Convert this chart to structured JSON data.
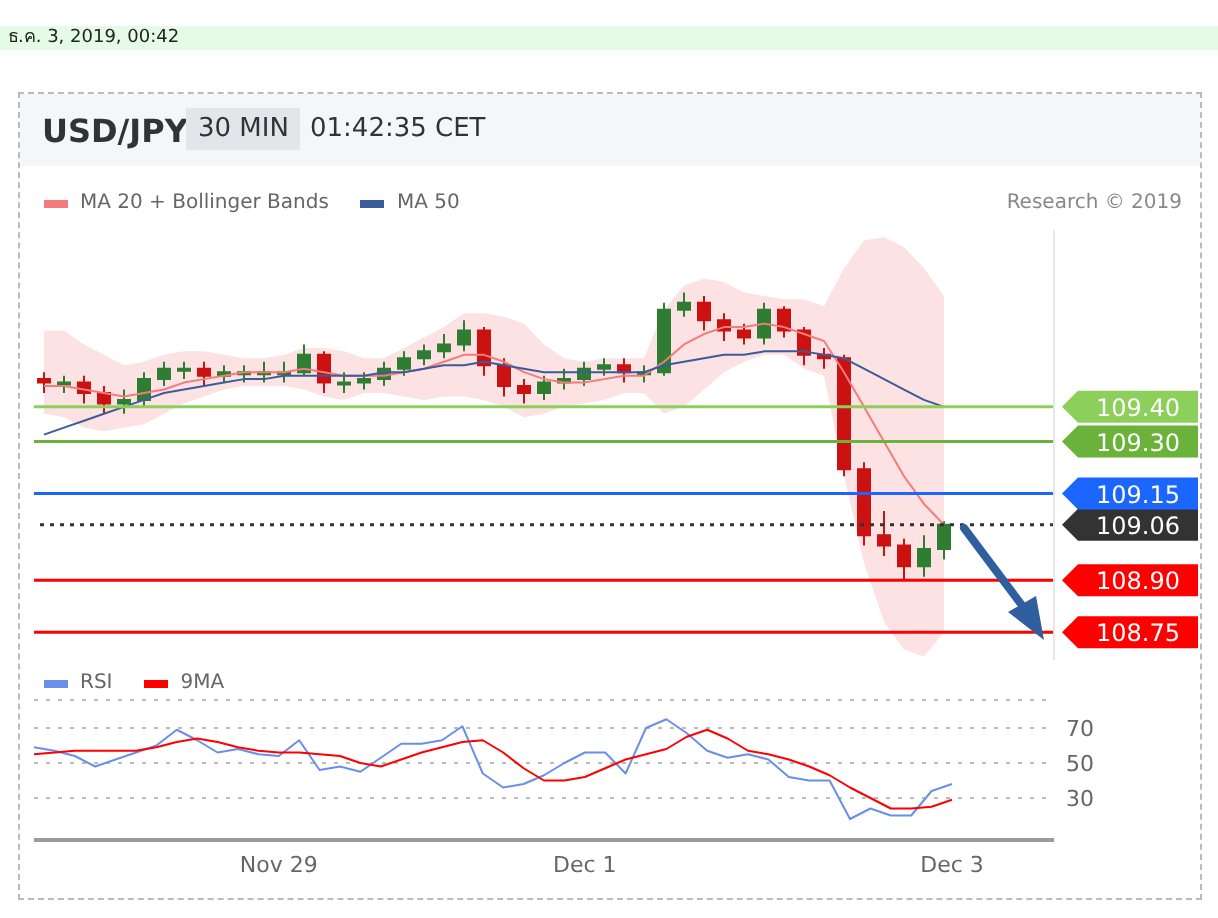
{
  "chart_data": [
    {
      "type": "candlestick",
      "title": "USD/JPY",
      "subtitle": "30 MIN",
      "annotations": [
        "01:42:35 CET",
        "Research © 2019",
        "ธ.ค. 3, 2019, 00:42"
      ],
      "categories": [
        null,
        null,
        null,
        null,
        null,
        null,
        null,
        null,
        null,
        null,
        null,
        null,
        null,
        null,
        null,
        null,
        null,
        null,
        null,
        null,
        null,
        null,
        null,
        null,
        null,
        null,
        null,
        null,
        null,
        null,
        null,
        null,
        null,
        null,
        null,
        null,
        null,
        null,
        null,
        null,
        null,
        null,
        null,
        null,
        null,
        null,
        null,
        null,
        null,
        null,
        null
      ],
      "ohlc": [
        [
          109.48,
          109.5,
          109.44,
          109.47
        ],
        [
          109.47,
          109.49,
          109.44,
          109.47
        ],
        [
          109.47,
          109.49,
          109.41,
          109.44
        ],
        [
          109.44,
          109.46,
          109.38,
          109.41
        ],
        [
          109.41,
          109.45,
          109.38,
          109.42
        ],
        [
          109.42,
          109.5,
          109.4,
          109.48
        ],
        [
          109.48,
          109.53,
          109.46,
          109.51
        ],
        [
          109.51,
          109.53,
          109.48,
          109.51
        ],
        [
          109.51,
          109.53,
          109.46,
          109.49
        ],
        [
          109.49,
          109.52,
          109.47,
          109.5
        ],
        [
          109.5,
          109.52,
          109.47,
          109.5
        ],
        [
          109.5,
          109.53,
          109.47,
          109.5
        ],
        [
          109.5,
          109.53,
          109.47,
          109.5
        ],
        [
          109.5,
          109.58,
          109.49,
          109.55
        ],
        [
          109.55,
          109.56,
          109.44,
          109.47
        ],
        [
          109.47,
          109.5,
          109.44,
          109.47
        ],
        [
          109.47,
          109.5,
          109.45,
          109.48
        ],
        [
          109.48,
          109.53,
          109.46,
          109.51
        ],
        [
          109.51,
          109.56,
          109.49,
          109.54
        ],
        [
          109.54,
          109.58,
          109.52,
          109.56
        ],
        [
          109.56,
          109.61,
          109.54,
          109.58
        ],
        [
          109.58,
          109.65,
          109.56,
          109.62
        ],
        [
          109.62,
          109.63,
          109.49,
          109.52
        ],
        [
          109.52,
          109.54,
          109.43,
          109.46
        ],
        [
          109.46,
          109.48,
          109.41,
          109.44
        ],
        [
          109.44,
          109.49,
          109.42,
          109.47
        ],
        [
          109.47,
          109.51,
          109.45,
          109.48
        ],
        [
          109.48,
          109.53,
          109.46,
          109.51
        ],
        [
          109.51,
          109.54,
          109.49,
          109.52
        ],
        [
          109.52,
          109.54,
          109.47,
          109.5
        ],
        [
          109.5,
          109.52,
          109.47,
          109.5
        ],
        [
          109.5,
          109.7,
          109.49,
          109.68
        ],
        [
          109.68,
          109.73,
          109.66,
          109.7
        ],
        [
          109.7,
          109.72,
          109.62,
          109.65
        ],
        [
          109.65,
          109.67,
          109.59,
          109.62
        ],
        [
          109.62,
          109.64,
          109.58,
          109.6
        ],
        [
          109.6,
          109.7,
          109.58,
          109.68
        ],
        [
          109.68,
          109.69,
          109.6,
          109.62
        ],
        [
          109.62,
          109.63,
          109.52,
          109.55
        ],
        [
          109.55,
          109.57,
          109.51,
          109.54
        ],
        [
          109.54,
          109.55,
          109.2,
          109.22
        ],
        [
          109.22,
          109.24,
          109.0,
          109.03
        ],
        [
          109.03,
          109.1,
          108.97,
          109.0
        ],
        [
          109.0,
          109.02,
          108.9,
          108.94
        ],
        [
          108.94,
          109.03,
          108.91,
          108.99
        ],
        [
          108.99,
          109.07,
          108.96,
          109.06
        ],
        null,
        null,
        null,
        null,
        null
      ],
      "series": [
        {
          "type": "line",
          "name": "MA 20 + Bollinger Bands",
          "color": "#f27c7c",
          "values": [
            109.46,
            109.46,
            109.45,
            109.44,
            109.43,
            109.44,
            109.45,
            109.47,
            109.48,
            109.49,
            109.5,
            109.5,
            109.5,
            109.51,
            109.5,
            109.49,
            109.49,
            109.49,
            109.5,
            109.51,
            109.53,
            109.55,
            109.55,
            109.53,
            109.5,
            109.48,
            109.47,
            109.47,
            109.48,
            109.49,
            109.49,
            109.53,
            109.58,
            109.61,
            109.63,
            109.63,
            109.64,
            109.63,
            109.61,
            109.59,
            109.5,
            109.4,
            109.3,
            109.2,
            109.12,
            109.06,
            null,
            null,
            null,
            null,
            null
          ],
          "lower": [
            109.38,
            109.37,
            109.34,
            109.33,
            109.34,
            109.35,
            109.38,
            109.41,
            109.43,
            109.45,
            109.46,
            109.46,
            109.46,
            109.45,
            109.43,
            109.42,
            109.44,
            109.44,
            109.43,
            109.42,
            109.43,
            109.43,
            109.42,
            109.4,
            109.37,
            109.38,
            109.4,
            109.41,
            109.42,
            109.44,
            109.44,
            109.38,
            109.4,
            109.45,
            109.5,
            109.53,
            109.55,
            109.55,
            109.51,
            109.49,
            109.2,
            108.95,
            108.78,
            108.7,
            108.68,
            108.75,
            null,
            null,
            null,
            null,
            null
          ],
          "upper": [
            109.62,
            109.62,
            109.58,
            109.55,
            109.52,
            109.53,
            109.55,
            109.56,
            109.56,
            109.55,
            109.54,
            109.54,
            109.55,
            109.57,
            109.57,
            109.56,
            109.54,
            109.54,
            109.57,
            109.6,
            109.63,
            109.67,
            109.67,
            109.66,
            109.64,
            109.58,
            109.54,
            109.53,
            109.54,
            109.54,
            109.54,
            109.68,
            109.75,
            109.77,
            109.76,
            109.73,
            109.72,
            109.71,
            109.71,
            109.69,
            109.8,
            109.88,
            109.89,
            109.86,
            109.8,
            109.72,
            null,
            null,
            null,
            null,
            null
          ]
        },
        {
          "type": "line",
          "name": "MA 50",
          "color": "#3b5b9b",
          "values": [
            109.32,
            109.34,
            109.36,
            109.38,
            109.4,
            109.42,
            109.44,
            109.45,
            109.46,
            109.47,
            109.48,
            109.48,
            109.49,
            109.49,
            109.49,
            109.49,
            109.49,
            109.5,
            109.5,
            109.51,
            109.52,
            109.52,
            109.53,
            109.52,
            109.51,
            109.5,
            109.5,
            109.5,
            109.5,
            109.5,
            109.5,
            109.52,
            109.53,
            109.54,
            109.55,
            109.55,
            109.56,
            109.56,
            109.56,
            109.55,
            109.54,
            109.51,
            109.48,
            109.45,
            109.42,
            109.4,
            null,
            null,
            null,
            null,
            null
          ]
        }
      ],
      "yticks": [
        {
          "value": 108.75,
          "label": "108.75"
        },
        {
          "value": 108.9,
          "label": "108.90"
        },
        {
          "value": 109.06,
          "label": "109.06"
        },
        {
          "value": 109.15,
          "label": "109.15"
        },
        {
          "value": 109.3,
          "label": "109.30"
        },
        {
          "value": 109.4,
          "label": "109.40"
        }
      ],
      "ylim": [
        108.67,
        109.91
      ],
      "tick_labels": "y",
      "legend": "top left",
      "ref_lines": [
        {
          "axis": "y",
          "value": 109.4,
          "color": "#8ccf5a"
        },
        {
          "axis": "y",
          "value": 109.3,
          "color": "#6ab23a"
        },
        {
          "axis": "y",
          "value": 109.15,
          "color": "#1a66ff"
        },
        {
          "axis": "y",
          "value": 109.06,
          "color": "#333333",
          "line_style": "dotted"
        },
        {
          "axis": "y",
          "value": 108.9,
          "color": "#ff0000"
        },
        {
          "axis": "y",
          "value": 108.75,
          "color": "#ff0000"
        }
      ]
    },
    {
      "type": "line",
      "categories": [
        null,
        null,
        null,
        null,
        null,
        null,
        null,
        null,
        null,
        null,
        null,
        null,
        "Nov 29",
        null,
        null,
        null,
        null,
        null,
        null,
        null,
        null,
        null,
        null,
        null,
        null,
        null,
        null,
        "Dec 1",
        null,
        null,
        null,
        null,
        null,
        null,
        null,
        null,
        null,
        null,
        null,
        null,
        null,
        null,
        null,
        null,
        null,
        "Dec 3",
        null,
        null,
        null,
        null,
        null
      ],
      "series": [
        {
          "name": "RSI",
          "color": "#6a8fe8",
          "values": [
            59,
            57,
            54,
            48,
            52,
            56,
            60,
            69,
            63,
            56,
            58,
            55,
            54,
            63,
            46,
            48,
            45,
            53,
            61,
            61,
            63,
            71,
            44,
            36,
            38,
            43,
            50,
            56,
            56,
            44,
            70,
            75,
            67,
            57,
            53,
            55,
            52,
            42,
            40,
            40,
            18,
            24,
            20,
            20,
            34,
            38,
            null,
            null,
            null,
            null,
            null
          ]
        },
        {
          "name": "9MA",
          "color": "#ff0000",
          "values": [
            55,
            56,
            57,
            57,
            57,
            57,
            59,
            62,
            64,
            62,
            59,
            57,
            56,
            56,
            55,
            54,
            50,
            48,
            52,
            56,
            59,
            62,
            63,
            56,
            47,
            40,
            40,
            42,
            47,
            52,
            55,
            58,
            65,
            69,
            64,
            57,
            55,
            52,
            48,
            43,
            36,
            30,
            24,
            24,
            25,
            29,
            null,
            null,
            null,
            null,
            null
          ]
        }
      ],
      "ylim": [
        6,
        86
      ],
      "yticks": [
        30,
        50,
        70
      ],
      "grid": "y",
      "legend": "top left"
    }
  ]
}
